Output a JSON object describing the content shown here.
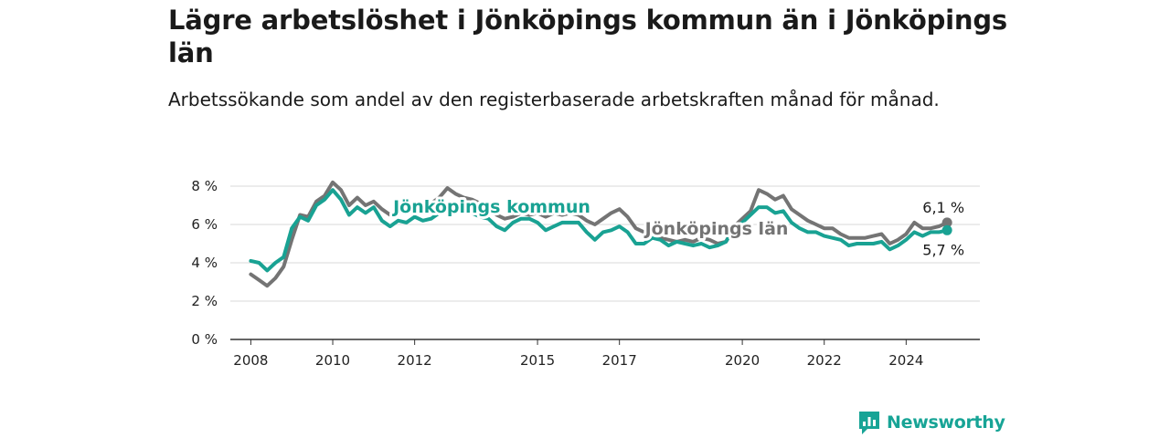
{
  "header": {
    "title": "Lägre arbetslöshet i Jönköpings kommun än i Jönköpings län",
    "subtitle": "Arbetssökande som andel av den registerbaserade arbetskraften månad för månad."
  },
  "brand": {
    "name": "Newsworthy",
    "logo_icon": "newsworthy-chart-logo-icon",
    "color": "#17a496"
  },
  "chart_data": {
    "type": "line",
    "title": "Lägre arbetslöshet i Jönköpings kommun än i Jönköpings län",
    "subtitle": "Arbetssökande som andel av den registerbaserade arbetskraften månad för månad.",
    "xlabel": "",
    "ylabel": "",
    "x_unit": "year",
    "xlim": [
      2007.5,
      2025.8
    ],
    "ylim": [
      0,
      8
    ],
    "y_ticks": [
      0,
      2,
      4,
      6,
      8
    ],
    "y_tick_labels": [
      "0 %",
      "2 %",
      "4 %",
      "6 %",
      "8 %"
    ],
    "x_ticks": [
      2008,
      2010,
      2012,
      2015,
      2017,
      2020,
      2022,
      2024
    ],
    "x_tick_labels": [
      "2008",
      "2010",
      "2012",
      "2015",
      "2017",
      "2020",
      "2022",
      "2024"
    ],
    "grid": true,
    "legend": "inline labels on lines",
    "series": [
      {
        "name": "Jönköpings län",
        "color": "#747474",
        "end_label": "6,1 %",
        "x": [
          2008.0,
          2008.2,
          2008.4,
          2008.6,
          2008.8,
          2009.0,
          2009.2,
          2009.4,
          2009.6,
          2009.8,
          2010.0,
          2010.2,
          2010.4,
          2010.6,
          2010.8,
          2011.0,
          2011.2,
          2011.4,
          2011.6,
          2011.8,
          2012.0,
          2012.2,
          2012.4,
          2012.6,
          2012.8,
          2013.0,
          2013.2,
          2013.4,
          2013.6,
          2013.8,
          2014.0,
          2014.2,
          2014.4,
          2014.6,
          2014.8,
          2015.0,
          2015.2,
          2015.4,
          2015.6,
          2015.8,
          2016.0,
          2016.2,
          2016.4,
          2016.6,
          2016.8,
          2017.0,
          2017.2,
          2017.4,
          2017.6,
          2017.8,
          2018.0,
          2018.2,
          2018.4,
          2018.6,
          2018.8,
          2019.0,
          2019.2,
          2019.4,
          2019.6,
          2019.8,
          2020.0,
          2020.2,
          2020.4,
          2020.6,
          2020.8,
          2021.0,
          2021.2,
          2021.4,
          2021.6,
          2021.8,
          2022.0,
          2022.2,
          2022.4,
          2022.6,
          2022.8,
          2023.0,
          2023.2,
          2023.4,
          2023.6,
          2023.8,
          2024.0,
          2024.2,
          2024.4,
          2024.6,
          2024.8,
          2025.0
        ],
        "values": [
          3.4,
          3.1,
          2.8,
          3.2,
          3.8,
          5.2,
          6.5,
          6.4,
          7.2,
          7.5,
          8.2,
          7.8,
          7.0,
          7.4,
          7.0,
          7.2,
          6.8,
          6.5,
          6.7,
          6.8,
          6.6,
          6.9,
          7.1,
          7.4,
          7.9,
          7.6,
          7.4,
          7.3,
          7.1,
          6.9,
          6.5,
          6.3,
          6.4,
          6.6,
          6.5,
          6.6,
          6.4,
          6.6,
          6.5,
          6.6,
          6.5,
          6.2,
          6.0,
          6.3,
          6.6,
          6.8,
          6.4,
          5.8,
          5.6,
          5.5,
          5.3,
          5.2,
          5.1,
          5.2,
          5.1,
          5.3,
          5.2,
          5.0,
          5.1,
          5.9,
          6.3,
          6.7,
          7.8,
          7.6,
          7.3,
          7.5,
          6.8,
          6.5,
          6.2,
          6.0,
          5.8,
          5.8,
          5.5,
          5.3,
          5.3,
          5.3,
          5.4,
          5.5,
          5.0,
          5.2,
          5.5,
          6.1,
          5.8,
          5.8,
          5.9,
          6.1
        ]
      },
      {
        "name": "Jönköpings kommun",
        "color": "#19a293",
        "end_label": "5,7 %",
        "x": [
          2008.0,
          2008.2,
          2008.4,
          2008.6,
          2008.8,
          2009.0,
          2009.2,
          2009.4,
          2009.6,
          2009.8,
          2010.0,
          2010.2,
          2010.4,
          2010.6,
          2010.8,
          2011.0,
          2011.2,
          2011.4,
          2011.6,
          2011.8,
          2012.0,
          2012.2,
          2012.4,
          2012.6,
          2012.8,
          2013.0,
          2013.2,
          2013.4,
          2013.6,
          2013.8,
          2014.0,
          2014.2,
          2014.4,
          2014.6,
          2014.8,
          2015.0,
          2015.2,
          2015.4,
          2015.6,
          2015.8,
          2016.0,
          2016.2,
          2016.4,
          2016.6,
          2016.8,
          2017.0,
          2017.2,
          2017.4,
          2017.6,
          2017.8,
          2018.0,
          2018.2,
          2018.4,
          2018.6,
          2018.8,
          2019.0,
          2019.2,
          2019.4,
          2019.6,
          2019.8,
          2020.0,
          2020.2,
          2020.4,
          2020.6,
          2020.8,
          2021.0,
          2021.2,
          2021.4,
          2021.6,
          2021.8,
          2022.0,
          2022.2,
          2022.4,
          2022.6,
          2022.8,
          2023.0,
          2023.2,
          2023.4,
          2023.6,
          2023.8,
          2024.0,
          2024.2,
          2024.4,
          2024.6,
          2024.8,
          2025.0
        ],
        "values": [
          4.1,
          4.0,
          3.6,
          4.0,
          4.3,
          5.8,
          6.4,
          6.2,
          7.0,
          7.3,
          7.8,
          7.3,
          6.5,
          6.9,
          6.6,
          6.9,
          6.2,
          5.9,
          6.2,
          6.1,
          6.4,
          6.2,
          6.3,
          6.6,
          6.9,
          6.7,
          6.6,
          6.6,
          6.4,
          6.3,
          5.9,
          5.7,
          6.1,
          6.3,
          6.3,
          6.1,
          5.7,
          5.9,
          6.1,
          6.1,
          6.1,
          5.6,
          5.2,
          5.6,
          5.7,
          5.9,
          5.6,
          5.0,
          5.0,
          5.3,
          5.2,
          4.9,
          5.1,
          5.0,
          4.9,
          5.0,
          4.8,
          4.9,
          5.1,
          5.8,
          6.1,
          6.5,
          6.9,
          6.9,
          6.6,
          6.7,
          6.1,
          5.8,
          5.6,
          5.6,
          5.4,
          5.3,
          5.2,
          4.9,
          5.0,
          5.0,
          5.0,
          5.1,
          4.7,
          4.9,
          5.2,
          5.6,
          5.4,
          5.6,
          5.6,
          5.7
        ]
      }
    ]
  }
}
